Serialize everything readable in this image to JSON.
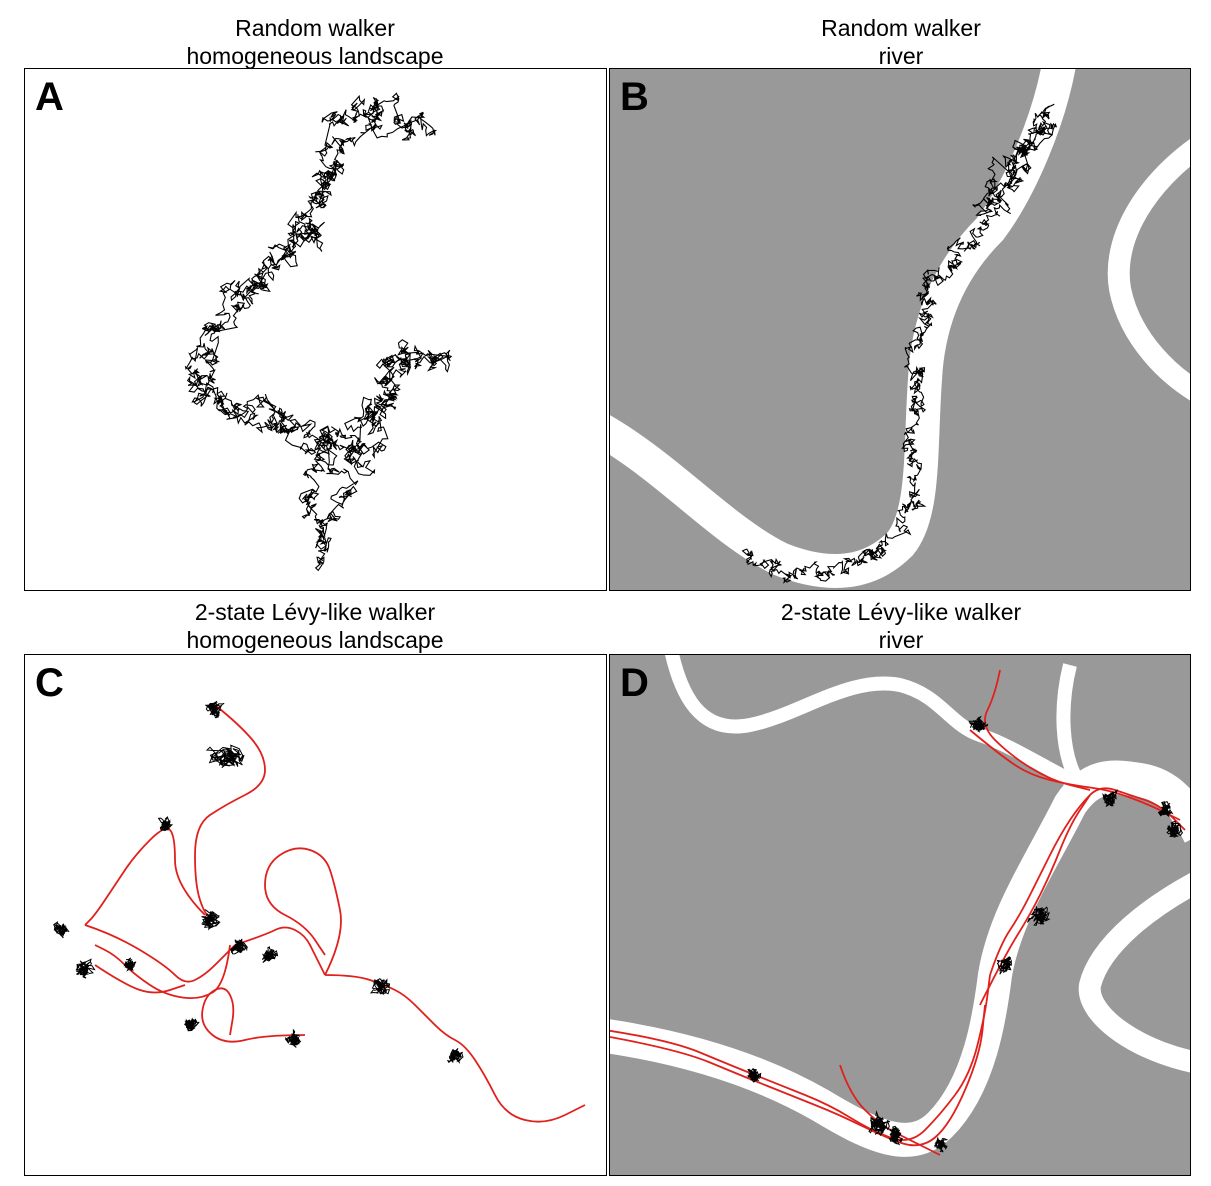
{
  "colors": {
    "land": "#999999",
    "river": "#ffffff",
    "brownian_path": "#000000",
    "levy_path": "#e0201c"
  },
  "panels": [
    {
      "letter": "A",
      "title_line1": "Random walker",
      "title_line2": "homogeneous landscape"
    },
    {
      "letter": "B",
      "title_line1": "Random walker",
      "title_line2": "river"
    },
    {
      "letter": "C",
      "title_line1": "2-state Lévy-like walker",
      "title_line2": "homogeneous landscape"
    },
    {
      "letter": "D",
      "title_line1": "2-state Lévy-like walker",
      "title_line2": "river"
    }
  ]
}
